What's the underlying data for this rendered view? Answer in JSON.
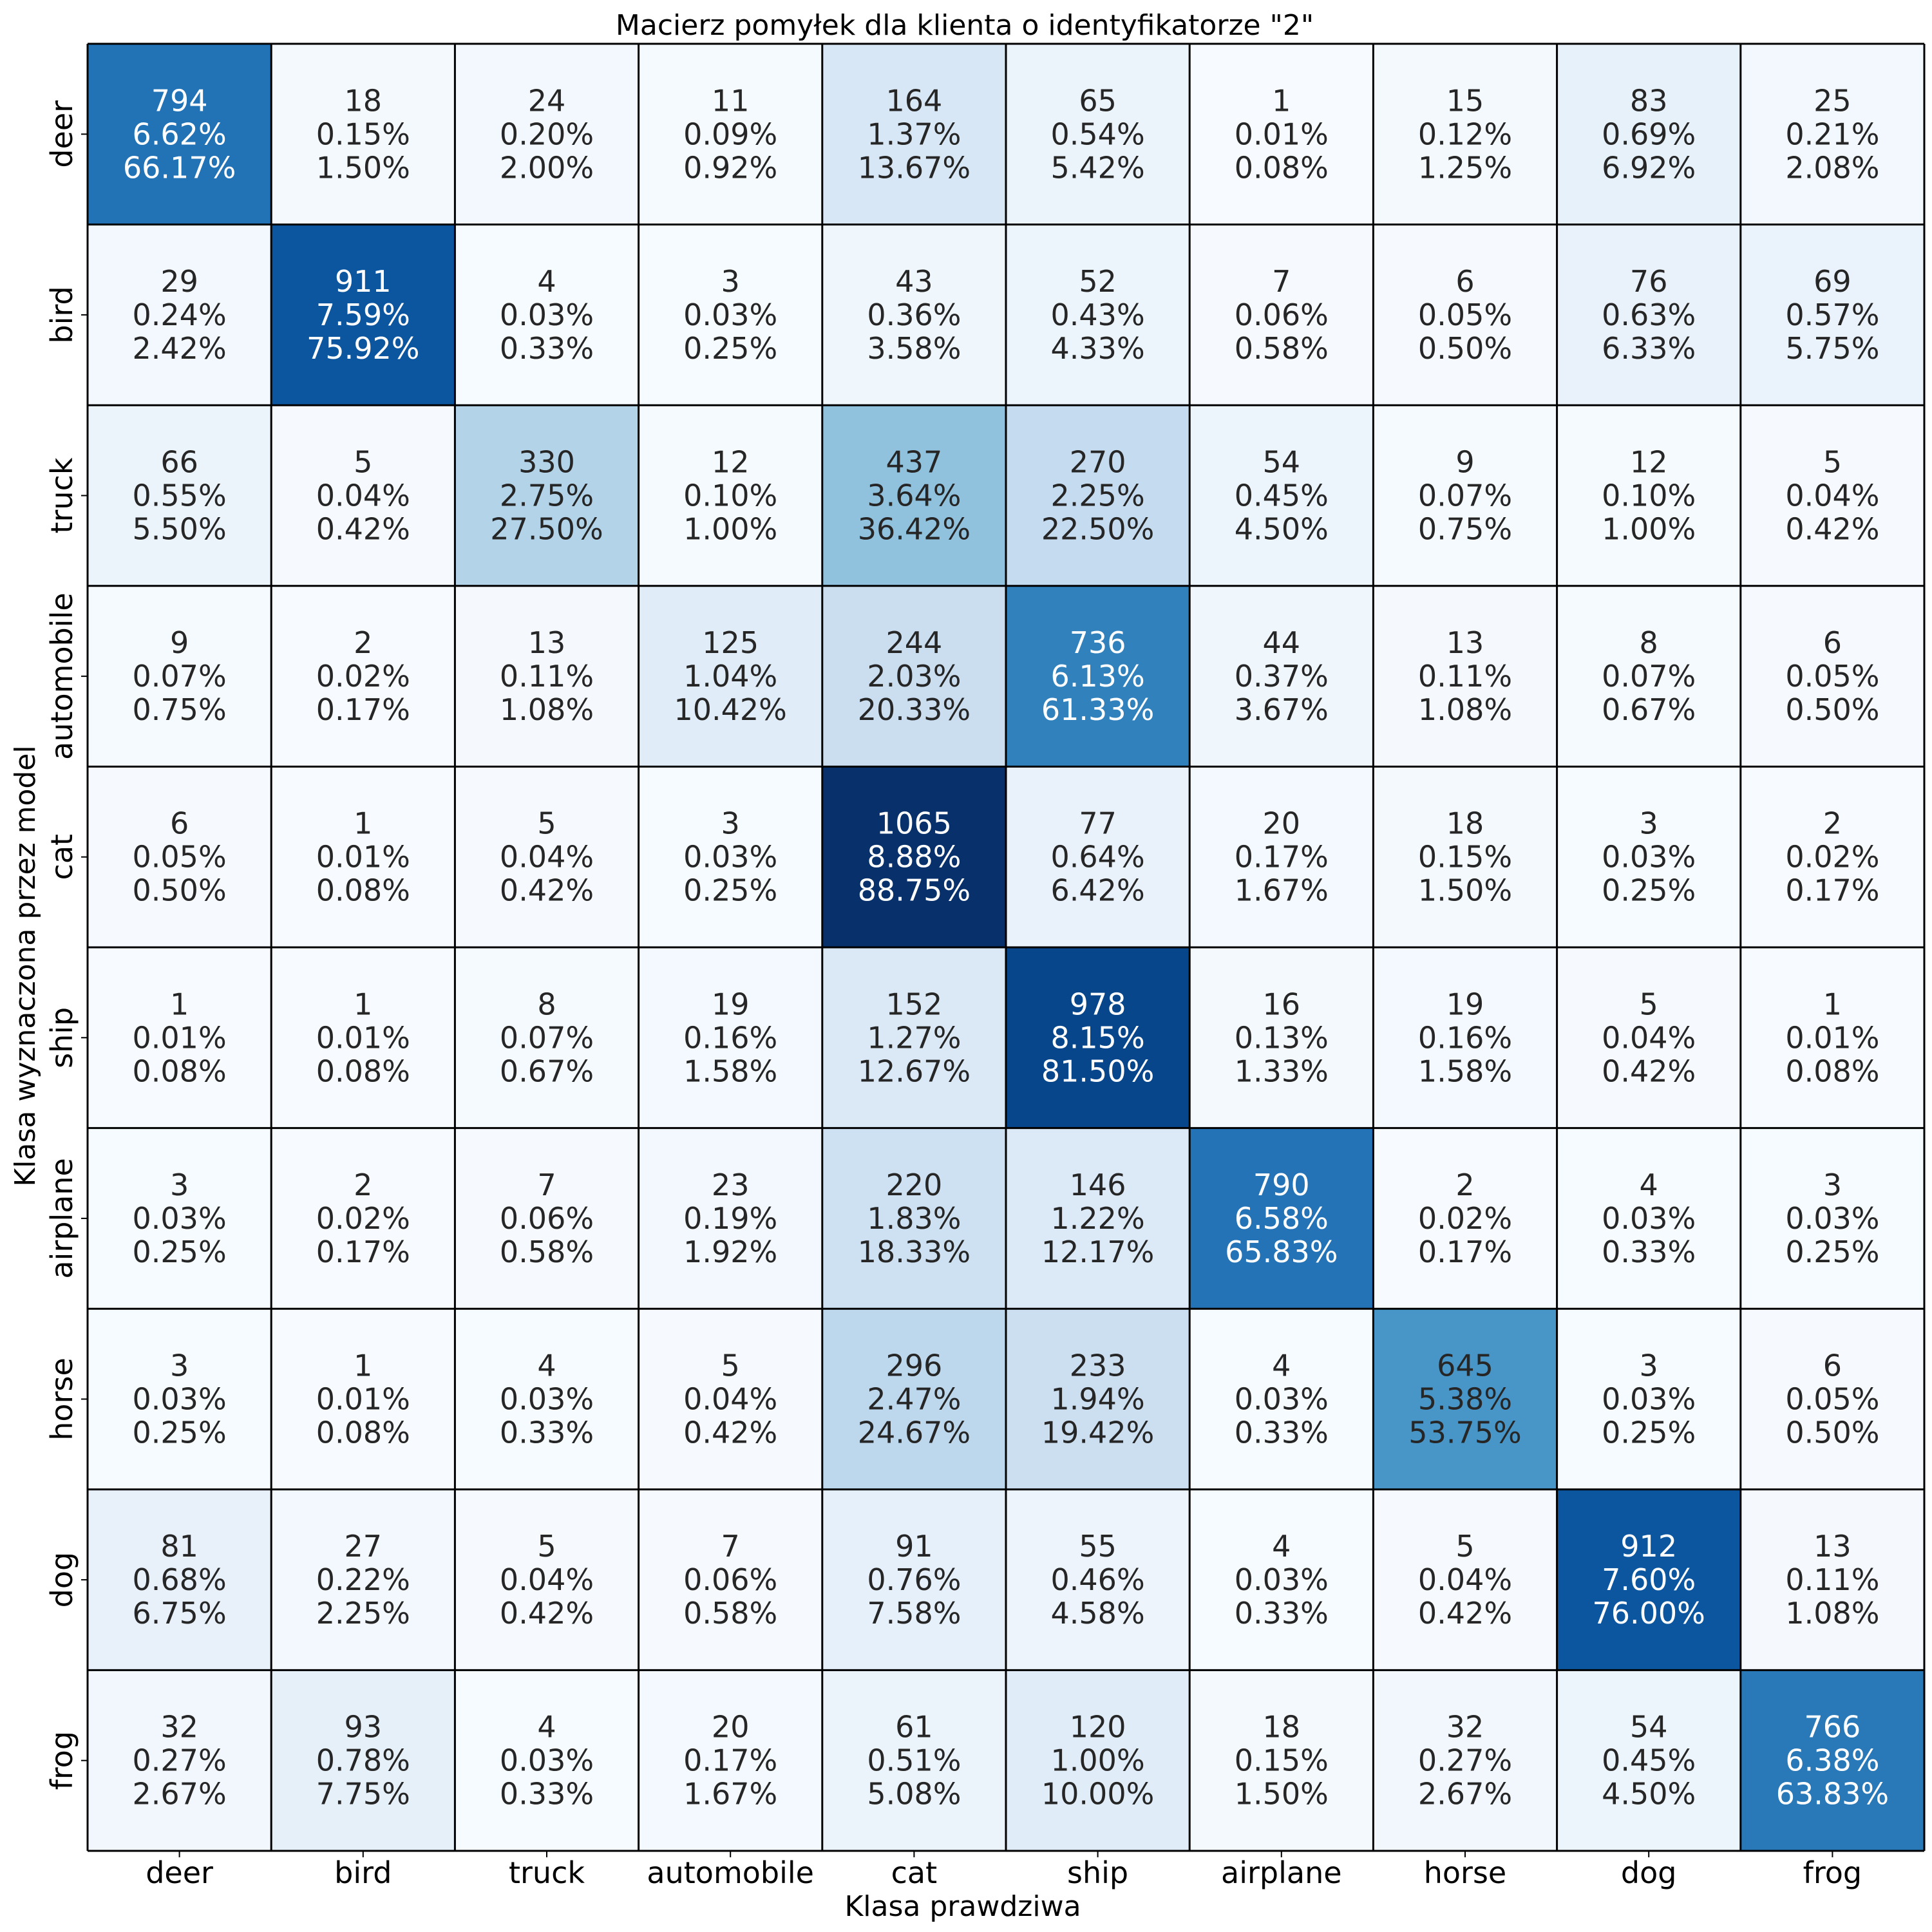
{
  "chart_data": {
    "type": "heatmap",
    "title": "Macierz pomyłek dla klienta o identyfikatorze \"2\"",
    "xlabel": "Klasa prawdziwa",
    "ylabel": "Klasa wyznaczona przez model",
    "x_categories": [
      "deer",
      "bird",
      "truck",
      "automobile",
      "cat",
      "ship",
      "airplane",
      "horse",
      "dog",
      "frog"
    ],
    "y_categories": [
      "deer",
      "bird",
      "truck",
      "automobile",
      "cat",
      "ship",
      "airplane",
      "horse",
      "dog",
      "frog"
    ],
    "colormap": "Blues",
    "color_min": "#f7fbff",
    "color_max": "#08306b",
    "value_range": [
      0,
      1065
    ],
    "values": [
      [
        794,
        18,
        24,
        11,
        164,
        65,
        1,
        15,
        83,
        25
      ],
      [
        29,
        911,
        4,
        3,
        43,
        52,
        7,
        6,
        76,
        69
      ],
      [
        66,
        5,
        330,
        12,
        437,
        270,
        54,
        9,
        12,
        5
      ],
      [
        9,
        2,
        13,
        125,
        244,
        736,
        44,
        13,
        8,
        6
      ],
      [
        6,
        1,
        5,
        3,
        1065,
        77,
        20,
        18,
        3,
        2
      ],
      [
        1,
        1,
        8,
        19,
        152,
        978,
        16,
        19,
        5,
        1
      ],
      [
        3,
        2,
        7,
        23,
        220,
        146,
        790,
        2,
        4,
        3
      ],
      [
        3,
        1,
        4,
        5,
        296,
        233,
        4,
        645,
        3,
        6
      ],
      [
        81,
        27,
        5,
        7,
        91,
        55,
        4,
        5,
        912,
        13
      ],
      [
        32,
        93,
        4,
        20,
        61,
        120,
        18,
        32,
        54,
        766
      ]
    ],
    "percent_of_total": [
      [
        "6.62%",
        "0.15%",
        "0.20%",
        "0.09%",
        "1.37%",
        "0.54%",
        "0.01%",
        "0.12%",
        "0.69%",
        "0.21%"
      ],
      [
        "0.24%",
        "7.59%",
        "0.03%",
        "0.03%",
        "0.36%",
        "0.43%",
        "0.06%",
        "0.05%",
        "0.63%",
        "0.57%"
      ],
      [
        "0.55%",
        "0.04%",
        "2.75%",
        "0.10%",
        "3.64%",
        "2.25%",
        "0.45%",
        "0.07%",
        "0.10%",
        "0.04%"
      ],
      [
        "0.07%",
        "0.02%",
        "0.11%",
        "1.04%",
        "2.03%",
        "6.13%",
        "0.37%",
        "0.11%",
        "0.07%",
        "0.05%"
      ],
      [
        "0.05%",
        "0.01%",
        "0.04%",
        "0.03%",
        "8.88%",
        "0.64%",
        "0.17%",
        "0.15%",
        "0.03%",
        "0.02%"
      ],
      [
        "0.01%",
        "0.01%",
        "0.07%",
        "0.16%",
        "1.27%",
        "8.15%",
        "0.13%",
        "0.16%",
        "0.04%",
        "0.01%"
      ],
      [
        "0.03%",
        "0.02%",
        "0.06%",
        "0.19%",
        "1.83%",
        "1.22%",
        "6.58%",
        "0.02%",
        "0.03%",
        "0.03%"
      ],
      [
        "0.03%",
        "0.01%",
        "0.03%",
        "0.04%",
        "2.47%",
        "1.94%",
        "0.03%",
        "5.38%",
        "0.03%",
        "0.05%"
      ],
      [
        "0.68%",
        "0.22%",
        "0.04%",
        "0.06%",
        "0.76%",
        "0.46%",
        "0.03%",
        "0.04%",
        "7.60%",
        "0.11%"
      ],
      [
        "0.27%",
        "0.78%",
        "0.03%",
        "0.17%",
        "0.51%",
        "1.00%",
        "0.15%",
        "0.27%",
        "0.45%",
        "6.38%"
      ]
    ],
    "percent_of_row": [
      [
        "66.17%",
        "1.50%",
        "2.00%",
        "0.92%",
        "13.67%",
        "5.42%",
        "0.08%",
        "1.25%",
        "6.92%",
        "2.08%"
      ],
      [
        "2.42%",
        "75.92%",
        "0.33%",
        "0.25%",
        "3.58%",
        "4.33%",
        "0.58%",
        "0.50%",
        "6.33%",
        "5.75%"
      ],
      [
        "5.50%",
        "0.42%",
        "27.50%",
        "1.00%",
        "36.42%",
        "22.50%",
        "4.50%",
        "0.75%",
        "1.00%",
        "0.42%"
      ],
      [
        "0.75%",
        "0.17%",
        "1.08%",
        "10.42%",
        "20.33%",
        "61.33%",
        "3.67%",
        "1.08%",
        "0.67%",
        "0.50%"
      ],
      [
        "0.50%",
        "0.08%",
        "0.42%",
        "0.25%",
        "88.75%",
        "6.42%",
        "1.67%",
        "1.50%",
        "0.25%",
        "0.17%"
      ],
      [
        "0.08%",
        "0.08%",
        "0.67%",
        "1.58%",
        "12.67%",
        "81.50%",
        "1.33%",
        "1.58%",
        "0.42%",
        "0.08%"
      ],
      [
        "0.25%",
        "0.17%",
        "0.58%",
        "1.92%",
        "18.33%",
        "12.17%",
        "65.83%",
        "0.17%",
        "0.33%",
        "0.25%"
      ],
      [
        "0.25%",
        "0.08%",
        "0.33%",
        "0.42%",
        "24.67%",
        "19.42%",
        "0.33%",
        "53.75%",
        "0.25%",
        "0.50%"
      ],
      [
        "6.75%",
        "2.25%",
        "0.42%",
        "0.58%",
        "7.58%",
        "4.58%",
        "0.33%",
        "0.42%",
        "76.00%",
        "1.08%"
      ],
      [
        "2.67%",
        "7.75%",
        "0.33%",
        "1.67%",
        "5.08%",
        "10.00%",
        "1.50%",
        "2.67%",
        "4.50%",
        "63.83%"
      ]
    ],
    "grid": true,
    "legend": "none"
  }
}
